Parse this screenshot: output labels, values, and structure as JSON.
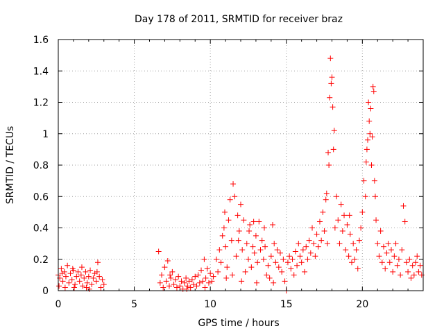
{
  "chart_data": {
    "type": "scatter",
    "title": "Day 178 of 2011, SRMTID for receiver braz",
    "xlabel": "GPS time / hours",
    "ylabel": "SRMTID / TECUs",
    "xlim": [
      0,
      24
    ],
    "ylim": [
      0,
      1.6
    ],
    "x_ticks": [
      0,
      5,
      10,
      15,
      20
    ],
    "x_tick_labels": [
      "0",
      "5",
      "10",
      "15",
      "20"
    ],
    "y_ticks": [
      0,
      0.2,
      0.4,
      0.6,
      0.8,
      1,
      1.2,
      1.4,
      1.6
    ],
    "y_tick_labels": [
      "0",
      "0.2",
      "0.4",
      "0.6",
      "0.8",
      "1",
      "1.2",
      "1.4",
      "1.6"
    ],
    "grid": true,
    "marker": "+",
    "series_color": "#ff0000",
    "series": [
      {
        "name": "SRMTID",
        "points": [
          [
            0.0,
            0.1
          ],
          [
            0.1,
            0.08
          ],
          [
            0.2,
            0.14
          ],
          [
            0.3,
            0.06
          ],
          [
            0.4,
            0.12
          ],
          [
            0.5,
            0.09
          ],
          [
            0.6,
            0.16
          ],
          [
            0.7,
            0.05
          ],
          [
            0.8,
            0.11
          ],
          [
            0.9,
            0.07
          ],
          [
            1.0,
            0.13
          ],
          [
            1.1,
            0.04
          ],
          [
            1.2,
            0.09
          ],
          [
            1.3,
            0.12
          ],
          [
            1.4,
            0.06
          ],
          [
            1.5,
            0.1
          ],
          [
            1.6,
            0.03
          ],
          [
            1.7,
            0.08
          ],
          [
            1.8,
            0.12
          ],
          [
            1.9,
            0.05
          ],
          [
            2.0,
            0.09
          ],
          [
            2.1,
            0.13
          ],
          [
            2.2,
            0.04
          ],
          [
            2.3,
            0.08
          ],
          [
            2.4,
            0.11
          ],
          [
            2.5,
            0.06
          ],
          [
            2.6,
            0.18
          ],
          [
            2.7,
            0.09
          ],
          [
            2.8,
            0.02
          ],
          [
            2.9,
            0.07
          ],
          [
            3.0,
            0.04
          ],
          [
            0.05,
            0.03
          ],
          [
            0.45,
            0.02
          ],
          [
            1.05,
            0.02
          ],
          [
            1.55,
            0.15
          ],
          [
            2.05,
            0.01
          ],
          [
            2.55,
            0.12
          ],
          [
            0.95,
            0.14
          ],
          [
            0.25,
            0.11
          ],
          [
            1.85,
            0.02
          ],
          [
            6.6,
            0.25
          ],
          [
            6.7,
            0.05
          ],
          [
            6.8,
            0.1
          ],
          [
            6.9,
            0.02
          ],
          [
            7.0,
            0.15
          ],
          [
            7.1,
            0.06
          ],
          [
            7.2,
            0.19
          ],
          [
            7.3,
            0.03
          ],
          [
            7.4,
            0.08
          ],
          [
            7.5,
            0.12
          ],
          [
            7.6,
            0.04
          ],
          [
            7.7,
            0.07
          ],
          [
            7.8,
            0.02
          ],
          [
            7.9,
            0.09
          ],
          [
            8.0,
            0.03
          ],
          [
            8.1,
            0.06
          ],
          [
            8.2,
            0.01
          ],
          [
            8.3,
            0.05
          ],
          [
            8.4,
            0.08
          ],
          [
            8.5,
            0.03
          ],
          [
            8.6,
            0.06
          ],
          [
            8.7,
            0.02
          ],
          [
            8.8,
            0.07
          ],
          [
            8.9,
            0.04
          ],
          [
            9.0,
            0.09
          ],
          [
            9.1,
            0.03
          ],
          [
            9.2,
            0.1
          ],
          [
            9.3,
            0.05
          ],
          [
            9.4,
            0.13
          ],
          [
            9.5,
            0.06
          ],
          [
            9.6,
            0.2
          ],
          [
            9.7,
            0.08
          ],
          [
            9.8,
            0.14
          ],
          [
            9.9,
            0.05
          ],
          [
            10.0,
            0.11
          ],
          [
            10.1,
            0.06
          ],
          [
            10.2,
            0.09
          ],
          [
            7.35,
            0.1
          ],
          [
            8.45,
            0.01
          ],
          [
            9.65,
            0.02
          ],
          [
            10.4,
            0.2
          ],
          [
            10.5,
            0.12
          ],
          [
            10.6,
            0.26
          ],
          [
            10.7,
            0.18
          ],
          [
            10.8,
            0.35
          ],
          [
            10.9,
            0.4
          ],
          [
            11.0,
            0.28
          ],
          [
            11.1,
            0.15
          ],
          [
            11.2,
            0.45
          ],
          [
            11.3,
            0.58
          ],
          [
            11.4,
            0.32
          ],
          [
            11.5,
            0.68
          ],
          [
            11.6,
            0.6
          ],
          [
            11.7,
            0.22
          ],
          [
            11.8,
            0.48
          ],
          [
            11.9,
            0.38
          ],
          [
            12.0,
            0.55
          ],
          [
            12.1,
            0.26
          ],
          [
            12.2,
            0.45
          ],
          [
            12.3,
            0.12
          ],
          [
            12.4,
            0.3
          ],
          [
            12.5,
            0.2
          ],
          [
            12.6,
            0.42
          ],
          [
            12.7,
            0.15
          ],
          [
            12.8,
            0.28
          ],
          [
            12.9,
            0.24
          ],
          [
            13.0,
            0.35
          ],
          [
            13.1,
            0.18
          ],
          [
            13.2,
            0.44
          ],
          [
            13.3,
            0.26
          ],
          [
            13.4,
            0.32
          ],
          [
            13.5,
            0.2
          ],
          [
            13.6,
            0.28
          ],
          [
            13.7,
            0.1
          ],
          [
            13.8,
            0.16
          ],
          [
            13.9,
            0.08
          ],
          [
            14.0,
            0.22
          ],
          [
            14.1,
            0.42
          ],
          [
            14.2,
            0.3
          ],
          [
            14.3,
            0.18
          ],
          [
            14.4,
            0.26
          ],
          [
            14.5,
            0.15
          ],
          [
            14.6,
            0.24
          ],
          [
            14.7,
            0.12
          ],
          [
            14.8,
            0.2
          ],
          [
            14.9,
            0.06
          ],
          [
            15.0,
            0.0
          ],
          [
            15.1,
            0.18
          ],
          [
            15.2,
            0.22
          ],
          [
            15.3,
            0.14
          ],
          [
            11.05,
            0.08
          ],
          [
            11.45,
            0.1
          ],
          [
            12.05,
            0.06
          ],
          [
            12.55,
            0.38
          ],
          [
            13.05,
            0.05
          ],
          [
            10.95,
            0.5
          ],
          [
            11.85,
            0.32
          ],
          [
            13.55,
            0.4
          ],
          [
            14.15,
            0.05
          ],
          [
            12.85,
            0.44
          ],
          [
            15.4,
            0.2
          ],
          [
            15.5,
            0.1
          ],
          [
            15.6,
            0.25
          ],
          [
            15.7,
            0.16
          ],
          [
            15.8,
            0.3
          ],
          [
            15.9,
            0.22
          ],
          [
            16.0,
            0.18
          ],
          [
            16.1,
            0.26
          ],
          [
            16.2,
            0.12
          ],
          [
            16.3,
            0.28
          ],
          [
            16.4,
            0.2
          ],
          [
            16.5,
            0.32
          ],
          [
            16.6,
            0.24
          ],
          [
            16.7,
            0.4
          ],
          [
            16.8,
            0.3
          ],
          [
            16.9,
            0.22
          ],
          [
            17.0,
            0.36
          ],
          [
            17.1,
            0.28
          ],
          [
            17.2,
            0.44
          ],
          [
            17.3,
            0.32
          ],
          [
            17.4,
            0.5
          ],
          [
            17.5,
            0.38
          ],
          [
            17.6,
            0.58
          ],
          [
            17.7,
            0.3
          ],
          [
            17.8,
            0.8
          ],
          [
            17.9,
            1.48
          ],
          [
            18.0,
            1.36
          ],
          [
            18.1,
            0.9
          ],
          [
            18.2,
            0.4
          ],
          [
            18.3,
            0.6
          ],
          [
            18.4,
            0.45
          ],
          [
            18.5,
            0.3
          ],
          [
            18.6,
            0.55
          ],
          [
            18.7,
            0.38
          ],
          [
            18.8,
            0.48
          ],
          [
            18.9,
            0.26
          ],
          [
            19.0,
            0.42
          ],
          [
            19.1,
            0.22
          ],
          [
            19.2,
            0.36
          ],
          [
            19.3,
            0.18
          ],
          [
            19.4,
            0.3
          ],
          [
            19.5,
            0.2
          ],
          [
            19.6,
            0.26
          ],
          [
            19.7,
            0.14
          ],
          [
            19.8,
            0.32
          ],
          [
            19.9,
            0.4
          ],
          [
            20.0,
            0.5
          ],
          [
            20.1,
            0.7
          ],
          [
            20.2,
            0.6
          ],
          [
            20.3,
            0.9
          ],
          [
            20.4,
            1.2
          ],
          [
            20.5,
            1.0
          ],
          [
            20.6,
            0.8
          ],
          [
            20.7,
            1.3
          ],
          [
            20.8,
            0.7
          ],
          [
            20.9,
            0.45
          ],
          [
            21.0,
            0.3
          ],
          [
            21.1,
            0.22
          ],
          [
            21.2,
            0.38
          ],
          [
            21.3,
            0.18
          ],
          [
            21.4,
            0.28
          ],
          [
            21.5,
            0.14
          ],
          [
            21.6,
            0.24
          ],
          [
            21.7,
            0.3
          ],
          [
            21.8,
            0.18
          ],
          [
            21.9,
            0.26
          ],
          [
            22.0,
            0.12
          ],
          [
            22.1,
            0.22
          ],
          [
            22.2,
            0.3
          ],
          [
            22.3,
            0.16
          ],
          [
            22.4,
            0.2
          ],
          [
            22.5,
            0.1
          ],
          [
            22.6,
            0.26
          ],
          [
            22.7,
            0.54
          ],
          [
            22.8,
            0.44
          ],
          [
            22.9,
            0.18
          ],
          [
            23.0,
            0.12
          ],
          [
            23.1,
            0.2
          ],
          [
            23.2,
            0.08
          ],
          [
            23.3,
            0.16
          ],
          [
            23.4,
            0.1
          ],
          [
            23.5,
            0.18
          ],
          [
            23.6,
            0.22
          ],
          [
            23.7,
            0.12
          ],
          [
            23.8,
            0.16
          ],
          [
            23.9,
            0.1
          ],
          [
            17.95,
            1.32
          ],
          [
            17.85,
            1.23
          ],
          [
            17.75,
            0.88
          ],
          [
            18.05,
            1.17
          ],
          [
            18.15,
            1.02
          ],
          [
            20.45,
            1.08
          ],
          [
            20.55,
            1.16
          ],
          [
            20.65,
            0.98
          ],
          [
            20.35,
            0.96
          ],
          [
            20.75,
            1.27
          ],
          [
            19.15,
            0.48
          ],
          [
            17.65,
            0.62
          ],
          [
            20.25,
            0.82
          ],
          [
            20.85,
            0.6
          ]
        ]
      }
    ]
  }
}
